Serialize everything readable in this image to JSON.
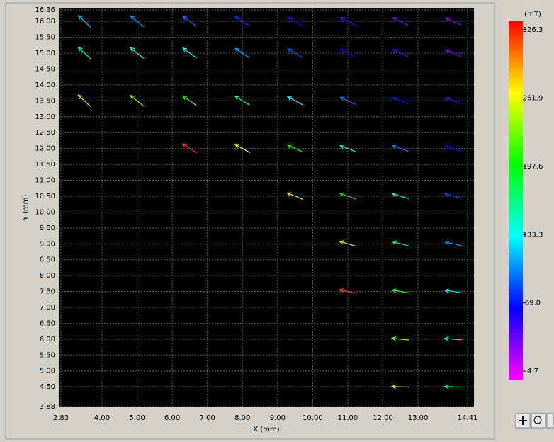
{
  "chart_data": {
    "type": "quiver",
    "x_label": "X (mm)",
    "y_label": "Y (mm)",
    "colorbar_label": "(mT)",
    "xlim": [
      2.83,
      14.41
    ],
    "xticks": [
      2.83,
      {
        "value": 4,
        "label": "4.00"
      },
      {
        "value": 5,
        "label": "5.00"
      },
      {
        "value": 6,
        "label": "6.00"
      },
      {
        "value": 7,
        "label": "7.00"
      },
      {
        "value": 8,
        "label": "8.00"
      },
      {
        "value": 9,
        "label": "9.00"
      },
      {
        "value": 10,
        "label": "10.00"
      },
      {
        "value": 11,
        "label": "11.00"
      },
      {
        "value": 12,
        "label": "12.00"
      },
      {
        "value": 13,
        "label": "13.00"
      },
      14.41
    ],
    "ylim": [
      3.88,
      16.36
    ],
    "yticks": [
      3.88,
      {
        "value": 4.5,
        "label": "4.50"
      },
      {
        "value": 5,
        "label": "5.00"
      },
      {
        "value": 5.5,
        "label": "5.50"
      },
      {
        "value": 6,
        "label": "6.00"
      },
      {
        "value": 6.5,
        "label": "6.50"
      },
      {
        "value": 7,
        "label": "7.00"
      },
      {
        "value": 7.5,
        "label": "7.50"
      },
      {
        "value": 8,
        "label": "8.00"
      },
      {
        "value": 8.5,
        "label": "8.50"
      },
      {
        "value": 9,
        "label": "9.00"
      },
      {
        "value": 9.5,
        "label": "9.50"
      },
      {
        "value": 10,
        "label": "10.00"
      },
      {
        "value": 10.5,
        "label": "10.50"
      },
      {
        "value": 11,
        "label": "11.00"
      },
      {
        "value": 11.5,
        "label": "11.50"
      },
      {
        "value": 12,
        "label": "12.00"
      },
      {
        "value": 12.5,
        "label": "12.50"
      },
      {
        "value": 13,
        "label": "13.00"
      },
      {
        "value": 13.5,
        "label": "13.50"
      },
      {
        "value": 14,
        "label": "14.00"
      },
      {
        "value": 14.5,
        "label": "14.50"
      },
      {
        "value": 15,
        "label": "15.00"
      },
      {
        "value": 15.5,
        "label": "15.50"
      },
      {
        "value": 16,
        "label": "16.00"
      },
      16.36
    ],
    "grid": true,
    "clim": [
      4.7,
      326.3
    ],
    "cticks": [
      4.7,
      {
        "value": 69,
        "label": "69.0"
      },
      133.3,
      197.6,
      261.9,
      326.3
    ],
    "x": [
      12.5,
      14,
      12.5,
      14,
      11,
      12.5,
      14,
      11,
      12.5,
      14,
      9.5,
      11,
      12.5,
      14,
      6.5,
      8,
      9.5,
      11,
      12.5,
      14,
      3.5,
      5,
      6.5,
      8,
      9.5,
      11,
      12.5,
      14,
      3.5,
      5,
      6.5,
      8,
      9.5,
      11,
      12.5,
      14,
      3.5,
      5,
      6.5,
      8,
      9.5,
      11,
      12.5,
      14
    ],
    "y": [
      4.5,
      4.5,
      6,
      6,
      7.5,
      7.5,
      7.5,
      9,
      9,
      9,
      10.5,
      10.5,
      10.5,
      10.5,
      12,
      12,
      12,
      12,
      12,
      12,
      13.5,
      13.5,
      13.5,
      13.5,
      13.5,
      13.5,
      13.5,
      13.5,
      15,
      15,
      15,
      15,
      15,
      15,
      15,
      15,
      16,
      16,
      16,
      16,
      16,
      16,
      16,
      16
    ],
    "angle": [
      178,
      178,
      174,
      175,
      168,
      170,
      171,
      164,
      166,
      168,
      158,
      160,
      163,
      165,
      147,
      151,
      155,
      158,
      160,
      162,
      137,
      141,
      145,
      149,
      152,
      155,
      158,
      160,
      137,
      141,
      144,
      147,
      150,
      153,
      155,
      158,
      137,
      140,
      143,
      147,
      149,
      152,
      154,
      156
    ],
    "magnitude": [
      247,
      155,
      231,
      146,
      311,
      202,
      130,
      254,
      168,
      109,
      269,
      190,
      131,
      88,
      315,
      254,
      189,
      140,
      99,
      68,
      250,
      234,
      205,
      169,
      132,
      98,
      71,
      51,
      157,
      148,
      131,
      111,
      89,
      68,
      49,
      35,
      115,
      109,
      98,
      83,
      68,
      53,
      40,
      30
    ]
  }
}
